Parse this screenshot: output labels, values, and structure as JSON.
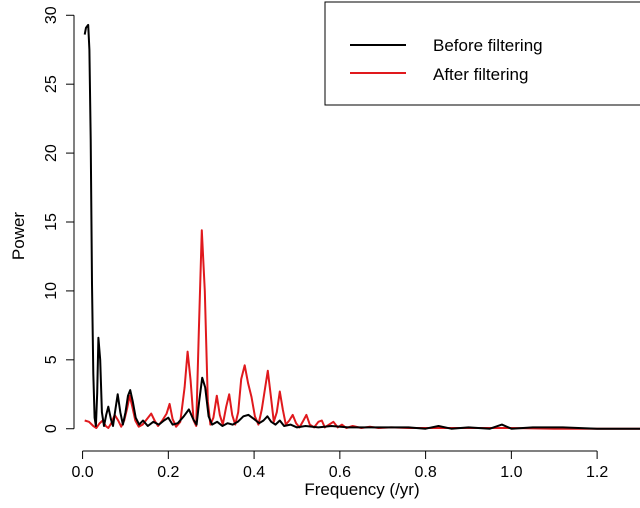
{
  "chart_data": {
    "type": "line",
    "title": "",
    "xlabel": "Frequency (/yr)",
    "ylabel": "Power",
    "xlim": [
      -0.02,
      1.3
    ],
    "ylim": [
      -0.6,
      30.6
    ],
    "xticks": [
      0.0,
      0.2,
      0.4,
      0.6,
      0.8,
      1.0,
      1.2
    ],
    "xtick_labels": [
      "0.0",
      "0.2",
      "0.4",
      "0.6",
      "0.8",
      "1.0",
      "1.2"
    ],
    "yticks": [
      0,
      5,
      10,
      15,
      20,
      25,
      30
    ],
    "ytick_labels": [
      "0",
      "5",
      "10",
      "15",
      "20",
      "25",
      "30"
    ],
    "grid": false,
    "legend_position": "top-right",
    "series": [
      {
        "name": "Before filtering",
        "color": "#000000",
        "points": [
          [
            0.005,
            28.6
          ],
          [
            0.008,
            29.1
          ],
          [
            0.013,
            29.3
          ],
          [
            0.016,
            27.5
          ],
          [
            0.019,
            21.0
          ],
          [
            0.022,
            10.5
          ],
          [
            0.025,
            4.0
          ],
          [
            0.028,
            0.8
          ],
          [
            0.031,
            0.2
          ],
          [
            0.034,
            2.6
          ],
          [
            0.037,
            6.6
          ],
          [
            0.041,
            5.0
          ],
          [
            0.045,
            1.2
          ],
          [
            0.05,
            0.2
          ],
          [
            0.055,
            1.0
          ],
          [
            0.06,
            1.6
          ],
          [
            0.066,
            0.7
          ],
          [
            0.071,
            0.2
          ],
          [
            0.077,
            1.5
          ],
          [
            0.082,
            2.5
          ],
          [
            0.088,
            1.2
          ],
          [
            0.094,
            0.3
          ],
          [
            0.1,
            1.2
          ],
          [
            0.106,
            2.4
          ],
          [
            0.111,
            2.8
          ],
          [
            0.117,
            2.0
          ],
          [
            0.124,
            0.8
          ],
          [
            0.132,
            0.3
          ],
          [
            0.141,
            0.6
          ],
          [
            0.152,
            0.2
          ],
          [
            0.165,
            0.5
          ],
          [
            0.178,
            0.3
          ],
          [
            0.19,
            0.6
          ],
          [
            0.2,
            0.8
          ],
          [
            0.21,
            0.3
          ],
          [
            0.222,
            0.4
          ],
          [
            0.236,
            0.9
          ],
          [
            0.248,
            1.4
          ],
          [
            0.258,
            0.7
          ],
          [
            0.266,
            0.3
          ],
          [
            0.272,
            2.0
          ],
          [
            0.279,
            3.7
          ],
          [
            0.286,
            3.0
          ],
          [
            0.294,
            0.9
          ],
          [
            0.302,
            0.3
          ],
          [
            0.314,
            0.5
          ],
          [
            0.326,
            0.2
          ],
          [
            0.338,
            0.4
          ],
          [
            0.35,
            0.3
          ],
          [
            0.362,
            0.5
          ],
          [
            0.375,
            0.9
          ],
          [
            0.387,
            1.0
          ],
          [
            0.4,
            0.7
          ],
          [
            0.412,
            0.4
          ],
          [
            0.422,
            0.6
          ],
          [
            0.431,
            0.9
          ],
          [
            0.44,
            0.5
          ],
          [
            0.45,
            0.3
          ],
          [
            0.46,
            0.6
          ],
          [
            0.47,
            0.2
          ],
          [
            0.485,
            0.3
          ],
          [
            0.5,
            0.1
          ],
          [
            0.52,
            0.2
          ],
          [
            0.55,
            0.1
          ],
          [
            0.58,
            0.2
          ],
          [
            0.62,
            0.1
          ],
          [
            0.66,
            0.1
          ],
          [
            0.7,
            0.1
          ],
          [
            0.76,
            0.1
          ],
          [
            0.8,
            0.0
          ],
          [
            0.83,
            0.2
          ],
          [
            0.86,
            0.0
          ],
          [
            0.9,
            0.1
          ],
          [
            0.95,
            0.0
          ],
          [
            0.978,
            0.3
          ],
          [
            1.0,
            0.0
          ],
          [
            1.05,
            0.1
          ],
          [
            1.12,
            0.1
          ],
          [
            1.2,
            0.0
          ],
          [
            1.3,
            0.0
          ]
        ]
      },
      {
        "name": "After filtering",
        "color": "#e0191d",
        "points": [
          [
            0.005,
            0.6
          ],
          [
            0.015,
            0.5
          ],
          [
            0.025,
            0.2
          ],
          [
            0.032,
            0.05
          ],
          [
            0.04,
            0.4
          ],
          [
            0.047,
            0.6
          ],
          [
            0.054,
            0.2
          ],
          [
            0.06,
            0.05
          ],
          [
            0.067,
            0.4
          ],
          [
            0.075,
            1.0
          ],
          [
            0.083,
            0.6
          ],
          [
            0.09,
            0.15
          ],
          [
            0.097,
            0.6
          ],
          [
            0.104,
            1.5
          ],
          [
            0.11,
            2.4
          ],
          [
            0.116,
            1.6
          ],
          [
            0.123,
            0.6
          ],
          [
            0.131,
            0.15
          ],
          [
            0.14,
            0.3
          ],
          [
            0.15,
            0.7
          ],
          [
            0.16,
            1.1
          ],
          [
            0.168,
            0.6
          ],
          [
            0.176,
            0.2
          ],
          [
            0.186,
            0.6
          ],
          [
            0.196,
            1.1
          ],
          [
            0.203,
            1.8
          ],
          [
            0.21,
            0.7
          ],
          [
            0.218,
            0.15
          ],
          [
            0.228,
            0.5
          ],
          [
            0.238,
            3.0
          ],
          [
            0.245,
            5.6
          ],
          [
            0.252,
            3.5
          ],
          [
            0.259,
            0.6
          ],
          [
            0.265,
            0.2
          ],
          [
            0.271,
            7.0
          ],
          [
            0.278,
            14.4
          ],
          [
            0.285,
            10.0
          ],
          [
            0.292,
            2.0
          ],
          [
            0.298,
            0.3
          ],
          [
            0.305,
            0.8
          ],
          [
            0.313,
            2.4
          ],
          [
            0.32,
            1.0
          ],
          [
            0.327,
            0.3
          ],
          [
            0.335,
            1.6
          ],
          [
            0.342,
            2.5
          ],
          [
            0.349,
            1.0
          ],
          [
            0.356,
            0.3
          ],
          [
            0.363,
            1.2
          ],
          [
            0.37,
            3.6
          ],
          [
            0.378,
            4.6
          ],
          [
            0.386,
            3.3
          ],
          [
            0.394,
            2.3
          ],
          [
            0.402,
            0.9
          ],
          [
            0.41,
            0.3
          ],
          [
            0.418,
            1.4
          ],
          [
            0.426,
            3.0
          ],
          [
            0.432,
            4.2
          ],
          [
            0.439,
            2.4
          ],
          [
            0.446,
            0.5
          ],
          [
            0.453,
            1.2
          ],
          [
            0.46,
            2.7
          ],
          [
            0.467,
            1.4
          ],
          [
            0.474,
            0.3
          ],
          [
            0.482,
            0.6
          ],
          [
            0.49,
            1.0
          ],
          [
            0.498,
            0.4
          ],
          [
            0.506,
            0.1
          ],
          [
            0.515,
            0.6
          ],
          [
            0.522,
            1.0
          ],
          [
            0.53,
            0.3
          ],
          [
            0.54,
            0.1
          ],
          [
            0.55,
            0.5
          ],
          [
            0.558,
            0.6
          ],
          [
            0.565,
            0.1
          ],
          [
            0.575,
            0.3
          ],
          [
            0.585,
            0.5
          ],
          [
            0.595,
            0.1
          ],
          [
            0.605,
            0.3
          ],
          [
            0.615,
            0.05
          ],
          [
            0.63,
            0.2
          ],
          [
            0.65,
            0.05
          ],
          [
            0.67,
            0.15
          ],
          [
            0.69,
            0.05
          ],
          [
            0.72,
            0.1
          ],
          [
            0.76,
            0.05
          ],
          [
            0.8,
            0.05
          ],
          [
            0.85,
            0.05
          ],
          [
            0.9,
            0.05
          ],
          [
            1.0,
            0.05
          ],
          [
            1.1,
            0.0
          ],
          [
            1.3,
            0.0
          ]
        ]
      }
    ]
  }
}
